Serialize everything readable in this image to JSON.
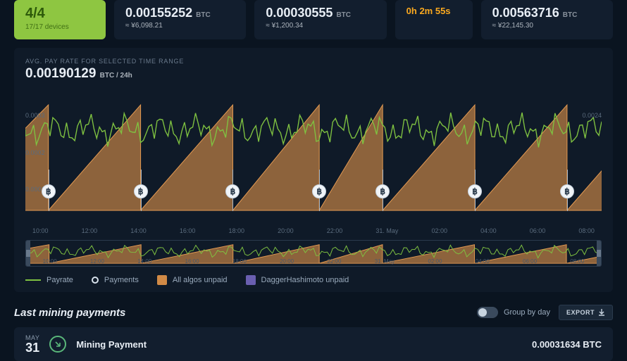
{
  "colors": {
    "payrate_line": "#7fc241",
    "unpaid_area_fill": "#d18a46",
    "unpaid_area_stroke": "#e69b52",
    "dagger_unpaid": "#6a5fb0",
    "marker_bg": "#f0f4f8",
    "card_bg": "#121e2e",
    "active_card_bg": "#8ec641"
  },
  "cards": {
    "rigs": {
      "value": "4/4",
      "sub": "17/17 devices"
    },
    "stat1": {
      "value": "0.00155252",
      "unit": "BTC",
      "sub": "≈ ¥6,098.21"
    },
    "stat2": {
      "value": "0.00030555",
      "unit": "BTC",
      "sub": "≈ ¥1,200.34"
    },
    "next": {
      "label": "0h 2m 55s"
    },
    "stat3": {
      "value": "0.00563716",
      "unit": "BTC",
      "sub": "≈ ¥22,145.30"
    }
  },
  "chart": {
    "header_label": "AVG. PAY RATE FOR SELECTED TIME RANGE",
    "header_value": "0.00190129",
    "header_unit": "BTC / 24h",
    "y_left": [
      "0.0003",
      "0.0002",
      "0.0001"
    ],
    "y_right": "0.0024",
    "x_ticks": [
      "10:00",
      "12:00",
      "14:00",
      "16:00",
      "18:00",
      "20:00",
      "22:00",
      "31. May",
      "02:00",
      "04:00",
      "06:00",
      "08:00"
    ],
    "brush_ticks": [
      "10:00",
      "12:00",
      "14:00",
      "16:00",
      "18:00",
      "20:00",
      "22:00",
      "31. May",
      "02:00",
      "04:00",
      "06:00",
      "08:00"
    ],
    "payment_markers_pct": [
      4,
      20,
      36,
      51,
      62,
      78,
      94
    ],
    "legend": {
      "payrate": "Payrate",
      "payments": "Payments",
      "all_unpaid": "All algos unpaid",
      "dagger": "DaggerHashimoto unpaid"
    }
  },
  "payments": {
    "title": "Last mining payments",
    "group_label": "Group by day",
    "export_label": "EXPORT",
    "row": {
      "month": "MAY",
      "day": "31",
      "label": "Mining Payment",
      "amount": "0.00031634 BTC"
    }
  }
}
